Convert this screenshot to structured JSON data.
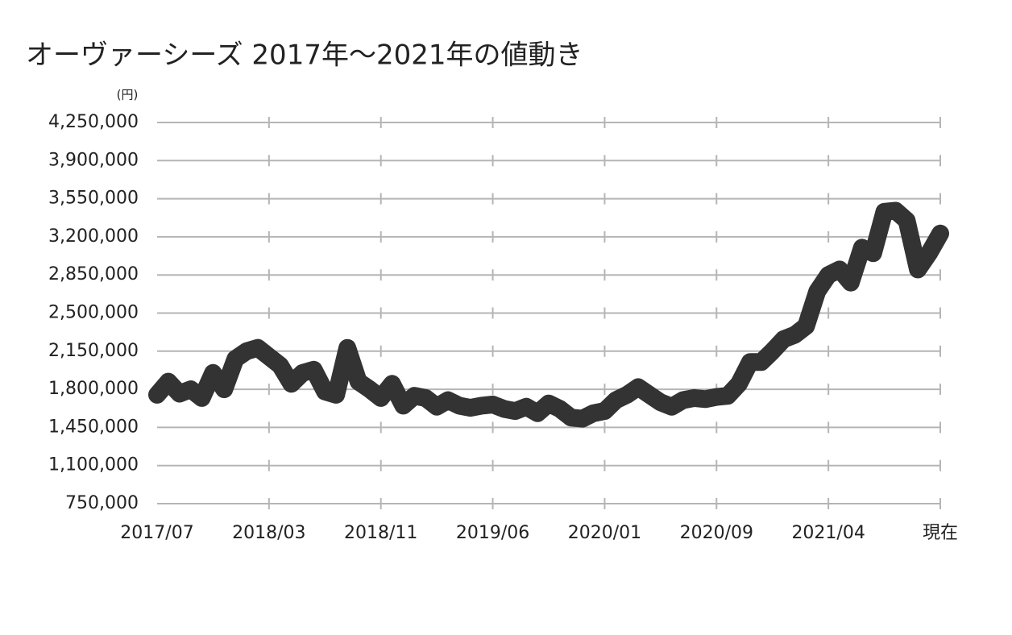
{
  "chart_data": {
    "type": "line",
    "title": "オーヴァーシーズ 2017年〜2021年の値動き",
    "y_unit": "(円)",
    "categories": [
      "2017/07",
      null,
      null,
      null,
      null,
      null,
      null,
      null,
      null,
      null,
      "2018/03",
      null,
      null,
      null,
      null,
      null,
      null,
      null,
      null,
      null,
      "2018/11",
      null,
      null,
      null,
      null,
      null,
      null,
      null,
      null,
      null,
      "2019/06",
      null,
      null,
      null,
      null,
      null,
      null,
      null,
      null,
      null,
      "2020/01",
      null,
      null,
      null,
      null,
      null,
      null,
      null,
      null,
      null,
      "2020/09",
      null,
      null,
      null,
      null,
      null,
      null,
      null,
      null,
      null,
      "2021/04",
      null,
      null,
      null,
      null,
      null,
      null,
      null,
      null,
      null,
      "現在"
    ],
    "values": [
      1750000,
      1870000,
      1760000,
      1800000,
      1720000,
      1950000,
      1800000,
      2080000,
      2150000,
      2180000,
      2100000,
      2020000,
      1850000,
      1950000,
      1980000,
      1780000,
      1750000,
      2180000,
      1870000,
      1800000,
      1720000,
      1850000,
      1650000,
      1740000,
      1720000,
      1640000,
      1700000,
      1650000,
      1630000,
      1650000,
      1660000,
      1620000,
      1600000,
      1640000,
      1580000,
      1670000,
      1620000,
      1540000,
      1530000,
      1580000,
      1600000,
      1700000,
      1750000,
      1820000,
      1750000,
      1680000,
      1640000,
      1700000,
      1720000,
      1710000,
      1730000,
      1740000,
      1850000,
      2050000,
      2050000,
      2150000,
      2260000,
      2300000,
      2380000,
      2700000,
      2850000,
      2900000,
      2780000,
      3100000,
      3050000,
      3430000,
      3440000,
      3350000,
      2900000,
      3050000,
      3230000
    ],
    "color": "#333333",
    "ylim": [
      750000,
      4250000
    ],
    "yticks": [
      {
        "value": 750000,
        "label": "750,000"
      },
      {
        "value": 1100000,
        "label": "1,100,000"
      },
      {
        "value": 1450000,
        "label": "1,450,000"
      },
      {
        "value": 1800000,
        "label": "1,800,000"
      },
      {
        "value": 2150000,
        "label": "2,150,000"
      },
      {
        "value": 2500000,
        "label": "2,500,000"
      },
      {
        "value": 2850000,
        "label": "2,850,000"
      },
      {
        "value": 3200000,
        "label": "3,200,000"
      },
      {
        "value": 3550000,
        "label": "3,550,000"
      },
      {
        "value": 3900000,
        "label": "3,900,000"
      },
      {
        "value": 4250000,
        "label": "4,250,000"
      }
    ],
    "grid": true
  }
}
